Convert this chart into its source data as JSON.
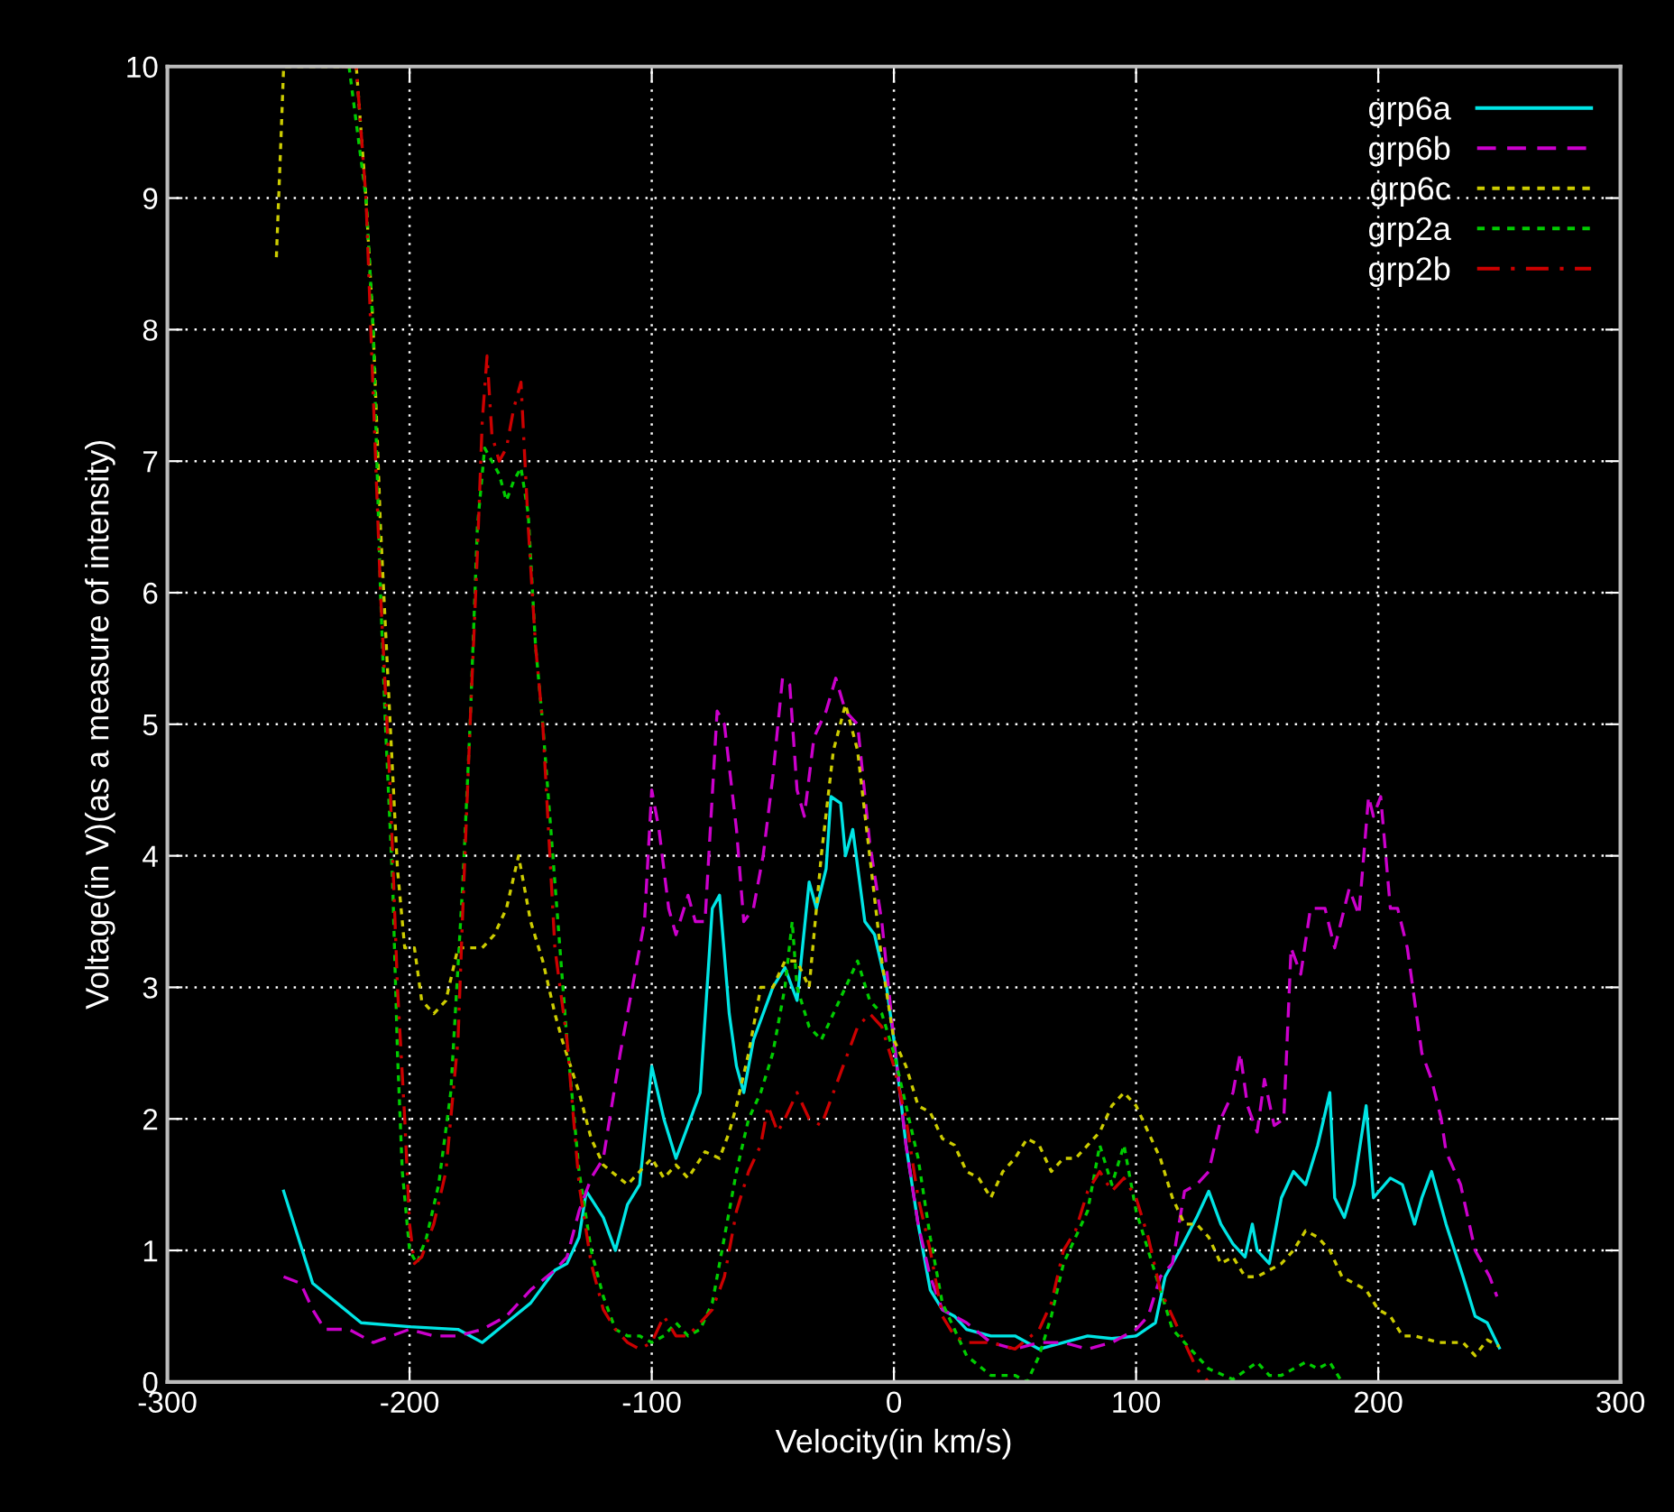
{
  "chart_data": {
    "type": "line",
    "xlabel": "Velocity(in km/s)",
    "ylabel": "Voltage(in V)(as a measure of intensity)",
    "xlim": [
      -300,
      300
    ],
    "xticks": [
      -300,
      -200,
      -100,
      0,
      100,
      200,
      300
    ],
    "ylim": [
      0,
      10
    ],
    "yticks": [
      0,
      1,
      2,
      3,
      4,
      5,
      6,
      7,
      8,
      9,
      10
    ],
    "grid": true,
    "legend": "top right",
    "marker": "none",
    "series": [
      {
        "name": "grp6a",
        "color": "#00e5e5",
        "line_style": "solid",
        "x": [
          -252,
          -240,
          -230,
          -220,
          -200,
          -180,
          -170,
          -160,
          -150,
          -140,
          -135,
          -130,
          -127,
          -120,
          -115,
          -110,
          -105,
          -100,
          -95,
          -90,
          -85,
          -80,
          -75,
          -72,
          -68,
          -65,
          -62,
          -58,
          -50,
          -45,
          -40,
          -35,
          -32,
          -28,
          -26,
          -22,
          -20,
          -17,
          -12,
          -8,
          -3,
          0,
          5,
          10,
          15,
          20,
          25,
          30,
          40,
          50,
          60,
          70,
          80,
          90,
          100,
          108,
          112,
          118,
          125,
          130,
          135,
          140,
          145,
          148,
          150,
          155,
          160,
          165,
          170,
          175,
          180,
          182,
          186,
          190,
          195,
          198,
          205,
          210,
          215,
          218,
          222,
          228,
          235,
          240,
          245,
          250
        ],
        "values": [
          1.45,
          0.75,
          0.6,
          0.45,
          0.42,
          0.4,
          0.3,
          0.45,
          0.6,
          0.85,
          0.9,
          1.1,
          1.45,
          1.25,
          1.0,
          1.35,
          1.5,
          2.4,
          2.0,
          1.7,
          1.95,
          2.2,
          3.6,
          3.7,
          2.8,
          2.4,
          2.2,
          2.6,
          3.0,
          3.15,
          2.9,
          3.8,
          3.6,
          3.9,
          4.45,
          4.4,
          4.0,
          4.2,
          3.5,
          3.4,
          3.0,
          2.6,
          1.8,
          1.2,
          0.7,
          0.55,
          0.5,
          0.4,
          0.35,
          0.35,
          0.25,
          0.3,
          0.35,
          0.33,
          0.35,
          0.45,
          0.8,
          1.0,
          1.25,
          1.45,
          1.2,
          1.05,
          0.95,
          1.2,
          1.0,
          0.9,
          1.4,
          1.6,
          1.5,
          1.8,
          2.2,
          1.4,
          1.25,
          1.5,
          2.1,
          1.4,
          1.55,
          1.5,
          1.2,
          1.4,
          1.6,
          1.2,
          0.8,
          0.5,
          0.45,
          0.26
        ]
      },
      {
        "name": "grp6b",
        "color": "#cc00cc",
        "line_style": "dashed",
        "x": [
          -252,
          -245,
          -240,
          -235,
          -225,
          -215,
          -200,
          -190,
          -180,
          -170,
          -160,
          -150,
          -140,
          -135,
          -130,
          -125,
          -120,
          -113,
          -108,
          -103,
          -100,
          -97,
          -93,
          -90,
          -85,
          -82,
          -78,
          -73,
          -70,
          -65,
          -62,
          -58,
          -54,
          -50,
          -46,
          -43,
          -40,
          -37,
          -33,
          -28,
          -24,
          -20,
          -15,
          -10,
          -5,
          0,
          5,
          10,
          15,
          20,
          30,
          40,
          50,
          60,
          70,
          80,
          90,
          100,
          105,
          110,
          115,
          120,
          125,
          130,
          135,
          140,
          143,
          146,
          150,
          153,
          157,
          161,
          164,
          168,
          172,
          178,
          182,
          188,
          192,
          196,
          198,
          201,
          205,
          208,
          212,
          218,
          222,
          226,
          228,
          234,
          240,
          246,
          249
        ],
        "values": [
          0.8,
          0.75,
          0.55,
          0.4,
          0.4,
          0.3,
          0.4,
          0.35,
          0.35,
          0.4,
          0.5,
          0.7,
          0.85,
          0.95,
          1.3,
          1.55,
          1.7,
          2.5,
          3.0,
          3.5,
          4.5,
          4.2,
          3.6,
          3.4,
          3.7,
          3.5,
          3.5,
          5.1,
          5.0,
          4.2,
          3.5,
          3.6,
          4.0,
          4.6,
          5.35,
          5.3,
          4.5,
          4.3,
          4.9,
          5.1,
          5.35,
          5.1,
          5.0,
          4.1,
          3.5,
          2.6,
          1.8,
          1.2,
          0.8,
          0.55,
          0.45,
          0.3,
          0.25,
          0.3,
          0.3,
          0.25,
          0.3,
          0.4,
          0.5,
          0.8,
          0.9,
          1.45,
          1.5,
          1.6,
          2.0,
          2.2,
          2.5,
          2.1,
          1.9,
          2.3,
          1.95,
          2.0,
          3.3,
          3.1,
          3.6,
          3.6,
          3.3,
          3.75,
          3.55,
          4.45,
          4.3,
          4.45,
          3.6,
          3.6,
          3.3,
          2.5,
          2.3,
          2.0,
          1.75,
          1.5,
          1.0,
          0.8,
          0.65
        ]
      },
      {
        "name": "grp6c",
        "color": "#cccc00",
        "line_style": "dotted",
        "x": [
          -255,
          -253,
          -252,
          -222,
          -218,
          -215,
          -212,
          -208,
          -205,
          -202,
          -198,
          -195,
          -190,
          -185,
          -180,
          -175,
          -170,
          -165,
          -160,
          -155,
          -150,
          -145,
          -140,
          -137,
          -130,
          -125,
          -120,
          -110,
          -105,
          -100,
          -95,
          -90,
          -85,
          -78,
          -72,
          -68,
          -65,
          -60,
          -55,
          -50,
          -45,
          -40,
          -35,
          -30,
          -25,
          -20,
          -15,
          -10,
          -5,
          0,
          5,
          10,
          15,
          20,
          25,
          30,
          35,
          40,
          45,
          50,
          55,
          60,
          65,
          70,
          75,
          80,
          85,
          90,
          95,
          100,
          105,
          110,
          115,
          120,
          125,
          130,
          135,
          140,
          145,
          150,
          155,
          160,
          165,
          170,
          175,
          180,
          185,
          190,
          195,
          200,
          205,
          210,
          215,
          225,
          235,
          240,
          245,
          250
        ],
        "values": [
          8.55,
          9.5,
          10,
          10,
          9,
          8,
          6.5,
          5,
          3.9,
          3.3,
          3.3,
          2.9,
          2.8,
          2.9,
          3.3,
          3.3,
          3.3,
          3.4,
          3.6,
          4.0,
          3.5,
          3.2,
          2.8,
          2.6,
          2.2,
          1.85,
          1.65,
          1.5,
          1.6,
          1.7,
          1.55,
          1.65,
          1.55,
          1.75,
          1.7,
          1.9,
          2.1,
          2.5,
          3.0,
          3.0,
          3.2,
          3.2,
          3.0,
          4.0,
          4.8,
          5.15,
          4.8,
          4.0,
          3.2,
          2.6,
          2.4,
          2.1,
          2.05,
          1.85,
          1.8,
          1.6,
          1.55,
          1.4,
          1.6,
          1.7,
          1.85,
          1.8,
          1.6,
          1.7,
          1.7,
          1.8,
          1.9,
          2.1,
          2.2,
          2.1,
          1.9,
          1.7,
          1.4,
          1.2,
          1.2,
          1.1,
          0.9,
          0.95,
          0.8,
          0.8,
          0.85,
          0.9,
          1.0,
          1.15,
          1.1,
          1.0,
          0.8,
          0.75,
          0.7,
          0.55,
          0.5,
          0.35,
          0.35,
          0.3,
          0.3,
          0.2,
          0.32,
          0.27
        ]
      },
      {
        "name": "grp2a",
        "color": "#00cc00",
        "line_style": "dotted",
        "x": [
          -225,
          -218,
          -215,
          -212,
          -210,
          -207,
          -205,
          -203,
          -200,
          -197,
          -193,
          -188,
          -183,
          -178,
          -175,
          -172,
          -169,
          -166,
          -163,
          -160,
          -157,
          -154,
          -151,
          -148,
          -145,
          -140,
          -135,
          -130,
          -125,
          -120,
          -115,
          -110,
          -105,
          -100,
          -95,
          -90,
          -85,
          -80,
          -75,
          -70,
          -65,
          -60,
          -55,
          -50,
          -45,
          -42,
          -40,
          -35,
          -30,
          -25,
          -20,
          -15,
          -10,
          -5,
          0,
          5,
          10,
          15,
          20,
          25,
          30,
          40,
          50,
          55,
          60,
          65,
          70,
          75,
          80,
          85,
          90,
          95,
          100,
          105,
          110,
          115,
          120,
          125,
          130,
          140,
          150,
          155,
          160,
          170,
          175,
          180,
          185
        ],
        "values": [
          10,
          9.0,
          8.0,
          6.0,
          5.0,
          3.8,
          2.5,
          1.6,
          1.0,
          0.9,
          1.1,
          1.5,
          2.2,
          3.8,
          5.0,
          6.5,
          7.1,
          7.0,
          6.9,
          6.7,
          6.85,
          6.95,
          6.6,
          5.6,
          5.0,
          3.8,
          2.6,
          1.6,
          1.0,
          0.65,
          0.4,
          0.35,
          0.35,
          0.3,
          0.35,
          0.45,
          0.35,
          0.4,
          0.6,
          1.1,
          1.6,
          2.0,
          2.2,
          2.5,
          3.0,
          3.5,
          3.0,
          2.7,
          2.6,
          2.8,
          3.0,
          3.2,
          2.9,
          2.8,
          2.5,
          2.1,
          1.7,
          1.1,
          0.6,
          0.4,
          0.2,
          0.05,
          0.05,
          0.0,
          0.2,
          0.5,
          0.9,
          1.1,
          1.3,
          1.8,
          1.5,
          1.8,
          1.3,
          1.0,
          0.7,
          0.4,
          0.3,
          0.2,
          0.1,
          0.02,
          0.15,
          0.05,
          0.05,
          0.15,
          0.1,
          0.15,
          0.0
        ]
      },
      {
        "name": "grp2b",
        "color": "#cc0000",
        "line_style": "dashdot",
        "x": [
          -228,
          -222,
          -218,
          -215,
          -212,
          -208,
          -205,
          -202,
          -200,
          -198,
          -195,
          -190,
          -185,
          -180,
          -178,
          -175,
          -172,
          -170,
          -168,
          -166,
          -163,
          -160,
          -157,
          -154,
          -151,
          -148,
          -145,
          -140,
          -135,
          -130,
          -125,
          -120,
          -115,
          -110,
          -105,
          -100,
          -95,
          -90,
          -85,
          -80,
          -75,
          -70,
          -65,
          -60,
          -55,
          -52,
          -48,
          -45,
          -40,
          -35,
          -30,
          -25,
          -20,
          -15,
          -10,
          -5,
          0,
          5,
          10,
          15,
          20,
          25,
          30,
          40,
          50,
          60,
          65,
          70,
          75,
          80,
          85,
          90,
          95,
          100,
          105,
          110,
          115,
          120,
          125,
          130
        ],
        "values": [
          10,
          10,
          9,
          7.5,
          6.0,
          4.5,
          3.0,
          2.0,
          1.2,
          0.9,
          0.95,
          1.2,
          1.6,
          2.6,
          3.6,
          5.0,
          6.3,
          7.3,
          7.8,
          7.2,
          7.0,
          7.1,
          7.4,
          7.6,
          6.5,
          5.6,
          5.0,
          3.3,
          2.6,
          1.5,
          0.9,
          0.55,
          0.4,
          0.3,
          0.25,
          0.3,
          0.5,
          0.35,
          0.35,
          0.45,
          0.55,
          0.8,
          1.3,
          1.6,
          1.8,
          2.1,
          1.9,
          2.0,
          2.2,
          2.0,
          1.95,
          2.2,
          2.45,
          2.7,
          2.8,
          2.7,
          2.4,
          2.0,
          1.4,
          1.0,
          0.5,
          0.35,
          0.3,
          0.3,
          0.25,
          0.4,
          0.6,
          1.0,
          1.15,
          1.45,
          1.6,
          1.45,
          1.55,
          1.4,
          1.1,
          0.7,
          0.5,
          0.3,
          0.1,
          0.0
        ]
      }
    ]
  }
}
